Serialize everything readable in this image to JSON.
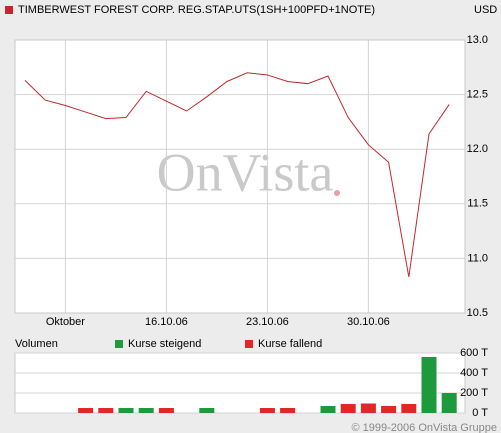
{
  "chart_data": [
    {
      "type": "line",
      "y_label": "USD",
      "categories": [
        null,
        null,
        "Oktober",
        null,
        null,
        null,
        null,
        "16.10.06",
        null,
        null,
        null,
        null,
        "23.10.06",
        null,
        null,
        null,
        null,
        "30.10.06",
        null,
        null,
        null,
        null
      ],
      "series": [
        {
          "name": "TIMBERWEST FOREST CORP. REG.STAP.UTS(1SH+100PFD+1NOTE)",
          "color": "#c0282d",
          "values": [
            12.63,
            12.45,
            12.4,
            12.34,
            12.28,
            12.29,
            12.53,
            12.44,
            12.35,
            12.48,
            12.62,
            12.7,
            12.68,
            12.62,
            12.6,
            12.67,
            12.29,
            12.04,
            11.88,
            10.83,
            12.14,
            12.41
          ]
        }
      ],
      "ylim": [
        10.5,
        13.0
      ],
      "yticks": [
        10.5,
        {
          "value": 11,
          "label": "11.0"
        },
        11.5,
        {
          "value": 12,
          "label": "12.0"
        },
        12.5,
        {
          "value": 13,
          "label": "13.0"
        }
      ],
      "grid": true
    },
    {
      "type": "bar",
      "title": "Volumen",
      "series": [
        {
          "name": "Kurse steigend",
          "color": "#1e9a3c",
          "values": [
            null,
            null,
            null,
            null,
            null,
            50,
            50,
            null,
            null,
            50,
            null,
            null,
            null,
            null,
            null,
            70,
            null,
            null,
            null,
            null,
            560,
            200
          ]
        },
        {
          "name": "Kurse fallend",
          "color": "#e32626",
          "values": [
            null,
            null,
            null,
            50,
            50,
            null,
            null,
            50,
            null,
            null,
            null,
            null,
            50,
            50,
            null,
            null,
            90,
            95,
            70,
            90,
            null,
            null
          ]
        }
      ],
      "ylim": [
        0,
        600
      ],
      "yticks": [
        {
          "value": 0,
          "label": "0 T"
        },
        {
          "value": 200,
          "label": "200 T"
        },
        {
          "value": 400,
          "label": "400 T"
        },
        {
          "value": 600,
          "label": "600 T"
        }
      ],
      "grid": true
    }
  ],
  "watermark": "OnVista",
  "copyright": "© 1999-2006 OnVista Gruppe"
}
